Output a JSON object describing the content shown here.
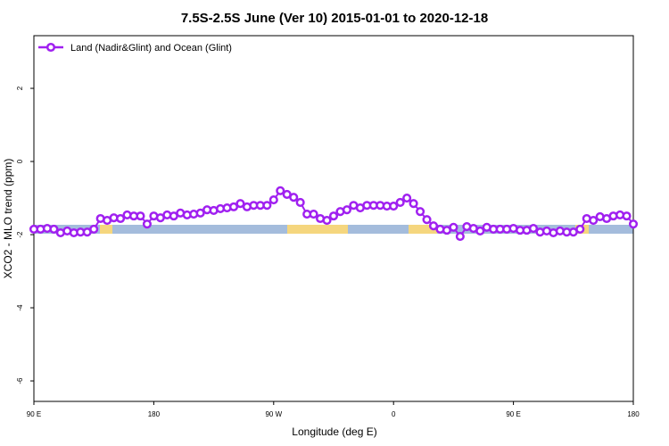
{
  "chart_data": {
    "type": "line",
    "title": "7.5S-2.5S June (Ver 10)   2015-01-01 to 2020-12-18",
    "x_label": "Longitude (deg E)",
    "y_label": "XCO2 - MLO trend (ppm)",
    "x": [
      90,
      95,
      100,
      105,
      110,
      115,
      120,
      125,
      130,
      135,
      140,
      145,
      150,
      155,
      160,
      165,
      170,
      175,
      180,
      185,
      190,
      195,
      200,
      205,
      210,
      215,
      220,
      225,
      230,
      235,
      240,
      245,
      250,
      255,
      260,
      265,
      270,
      275,
      280,
      285,
      290,
      295,
      300,
      305,
      310,
      315,
      320,
      325,
      330,
      335,
      340,
      345,
      350,
      355,
      360,
      365,
      370,
      375,
      380,
      385,
      390,
      395,
      400,
      405,
      410,
      415,
      420,
      425,
      430,
      435,
      440,
      445,
      450,
      455,
      460,
      465,
      470,
      475,
      480,
      485,
      490,
      495,
      500,
      505,
      510,
      515,
      520,
      525,
      530,
      535,
      540
    ],
    "series": [
      {
        "name": "Land (Nadir&Glint) and Ocean (Glint)",
        "color": "#a020f0",
        "values": [
          -1.85,
          -1.85,
          -1.83,
          -1.85,
          -1.95,
          -1.9,
          -1.95,
          -1.93,
          -1.93,
          -1.85,
          -1.56,
          -1.61,
          -1.54,
          -1.56,
          -1.46,
          -1.49,
          -1.49,
          -1.71,
          -1.49,
          -1.54,
          -1.46,
          -1.49,
          -1.41,
          -1.46,
          -1.44,
          -1.41,
          -1.32,
          -1.34,
          -1.29,
          -1.27,
          -1.24,
          -1.15,
          -1.24,
          -1.2,
          -1.2,
          -1.2,
          -1.05,
          -0.8,
          -0.9,
          -0.98,
          -1.12,
          -1.44,
          -1.44,
          -1.56,
          -1.61,
          -1.49,
          -1.37,
          -1.32,
          -1.2,
          -1.27,
          -1.2,
          -1.2,
          -1.2,
          -1.22,
          -1.22,
          -1.12,
          -1.0,
          -1.15,
          -1.37,
          -1.59,
          -1.76,
          -1.85,
          -1.88,
          -1.8,
          -2.05,
          -1.78,
          -1.83,
          -1.9,
          -1.8,
          -1.85,
          -1.85,
          -1.85,
          -1.83,
          -1.88,
          -1.88,
          -1.83,
          -1.93,
          -1.9,
          -1.95,
          -1.9,
          -1.93,
          -1.93,
          -1.85,
          -1.56,
          -1.61,
          -1.51,
          -1.56,
          -1.49,
          -1.46,
          -1.49,
          -1.71
        ]
      }
    ],
    "xlim": [
      90,
      540
    ],
    "xticks": [
      {
        "value": 90,
        "label": "90 E"
      },
      180,
      {
        "value": 270,
        "label": "90 W"
      },
      {
        "value": 360,
        "label": "0"
      },
      {
        "value": 450,
        "label": "90 E"
      },
      {
        "value": 540,
        "label": "180"
      }
    ],
    "ylim": [
      -6.56,
      3.44
    ],
    "yticks": [
      -6,
      -4,
      -2,
      0,
      2
    ],
    "legend": "top-left"
  }
}
